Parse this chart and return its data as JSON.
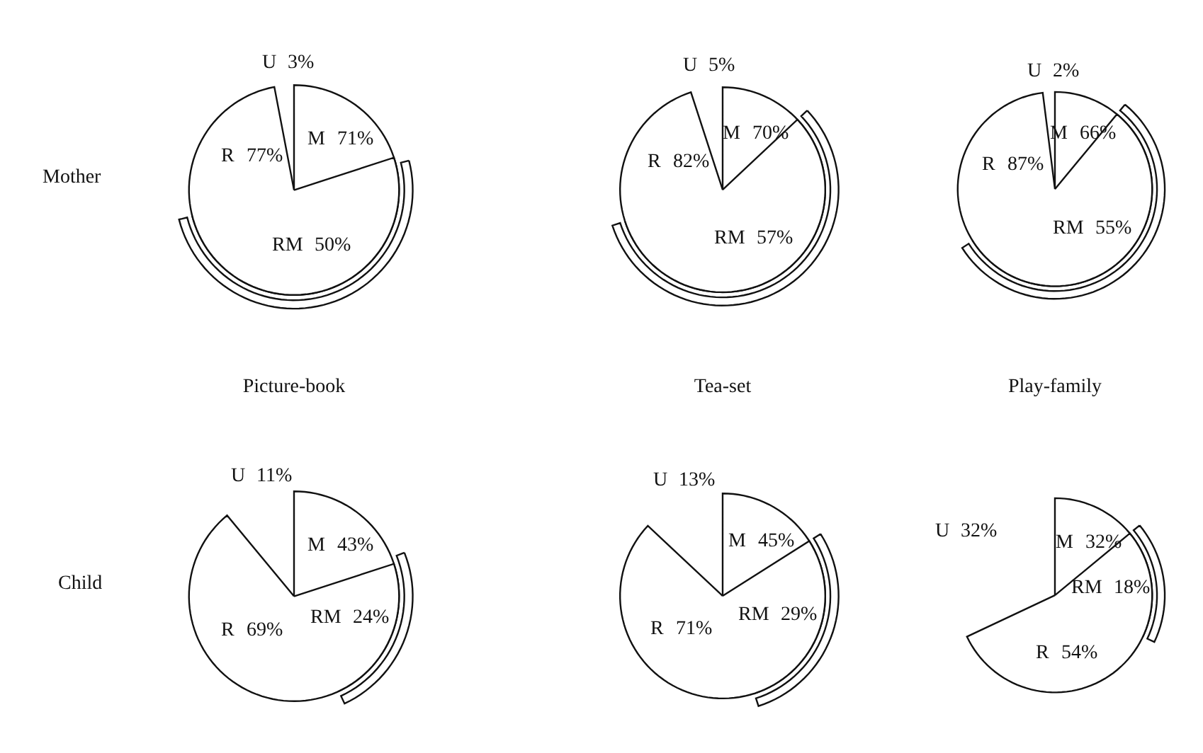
{
  "chart_data": [
    {
      "type": "other",
      "ylabel": "Mother",
      "categories": [
        "U",
        "M",
        "R",
        "RM"
      ],
      "values": [
        3,
        71,
        77,
        50
      ],
      "value_labels": [
        "3%",
        "71%",
        "77%",
        "50%"
      ],
      "colors": [
        "#ffffff",
        "#ffffff",
        "#ffffff",
        "#ffffff"
      ]
    },
    {
      "type": "other",
      "categories": [
        "U",
        "M",
        "R",
        "RM"
      ],
      "values": [
        5,
        70,
        82,
        57
      ],
      "value_labels": [
        "5%",
        "70%",
        "82%",
        "57%"
      ],
      "colors": [
        "#ffffff",
        "#ffffff",
        "#ffffff",
        "#ffffff"
      ]
    },
    {
      "type": "other",
      "categories": [
        "U",
        "M",
        "R",
        "RM"
      ],
      "values": [
        2,
        66,
        87,
        55
      ],
      "value_labels": [
        "2%",
        "66%",
        "87%",
        "55%"
      ],
      "colors": [
        "#ffffff",
        "#ffffff",
        "#ffffff",
        "#ffffff"
      ]
    },
    {
      "type": "other",
      "title": "Picture-book",
      "ylabel": "Child",
      "categories": [
        "U",
        "M",
        "R",
        "RM"
      ],
      "values": [
        11,
        43,
        69,
        24
      ],
      "value_labels": [
        "11%",
        "43%",
        "69%",
        "24%"
      ],
      "colors": [
        "#ffffff",
        "#ffffff",
        "#ffffff",
        "#ffffff"
      ]
    },
    {
      "type": "other",
      "title": "Tea-set",
      "categories": [
        "U",
        "M",
        "R",
        "RM"
      ],
      "values": [
        13,
        45,
        71,
        29
      ],
      "value_labels": [
        "13%",
        "45%",
        "71%",
        "29%"
      ],
      "colors": [
        "#ffffff",
        "#ffffff",
        "#ffffff",
        "#ffffff"
      ]
    },
    {
      "type": "other",
      "title": "Play-family",
      "categories": [
        "U",
        "M",
        "R",
        "RM"
      ],
      "values": [
        32,
        32,
        54,
        18
      ],
      "value_labels": [
        "32%",
        "32%",
        "54%",
        "18%"
      ],
      "colors": [
        "#ffffff",
        "#ffffff",
        "#ffffff",
        "#ffffff"
      ]
    }
  ]
}
